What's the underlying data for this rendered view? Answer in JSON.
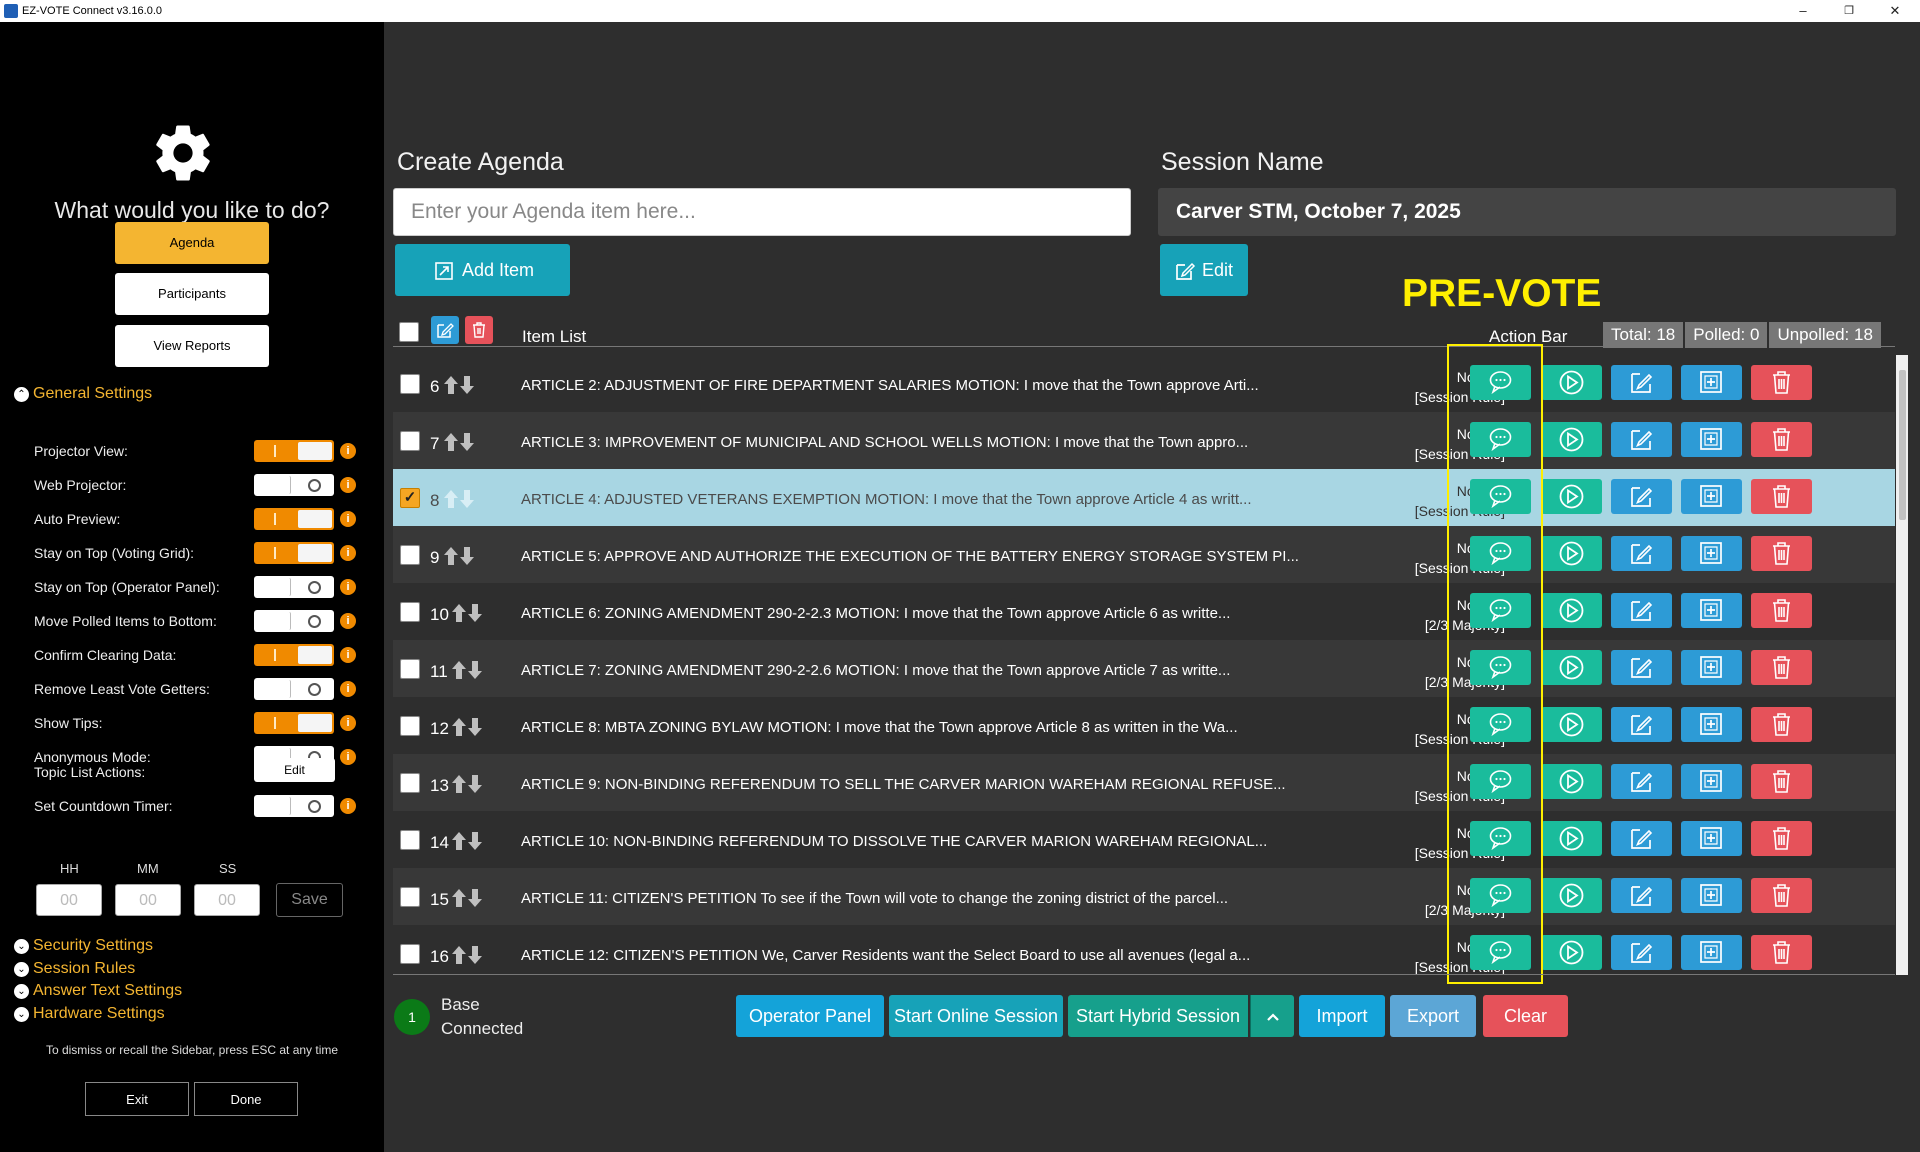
{
  "window": {
    "title": "EZ-VOTE Connect v3.16.0.0",
    "minimize": "–",
    "maximize": "❐",
    "close": "✕"
  },
  "sidebar": {
    "question": "What would you like to do?",
    "nav": [
      "Agenda",
      "Participants",
      "View Reports"
    ],
    "general_settings": "General Settings",
    "settings": [
      {
        "label": "Projector View:",
        "on": true
      },
      {
        "label": "Web Projector:",
        "on": false
      },
      {
        "label": "Auto Preview:",
        "on": true
      },
      {
        "label": "Stay on Top (Voting Grid):",
        "on": true
      },
      {
        "label": "Stay on Top (Operator Panel):",
        "on": false
      },
      {
        "label": "Move Polled Items to Bottom:",
        "on": false
      },
      {
        "label": "Confirm Clearing Data:",
        "on": true
      },
      {
        "label": "Remove Least Vote Getters:",
        "on": false
      },
      {
        "label": "Show Tips:",
        "on": true
      },
      {
        "label": "Anonymous Mode:",
        "on": false
      }
    ],
    "topic_list_actions": {
      "label": "Topic List Actions:",
      "button": "Edit"
    },
    "countdown": {
      "label": "Set Countdown Timer:",
      "on": false
    },
    "timer": {
      "hh_label": "HH",
      "mm_label": "MM",
      "ss_label": "SS",
      "hh": "00",
      "mm": "00",
      "ss": "00",
      "save": "Save"
    },
    "other_sections": [
      "Security Settings",
      "Session Rules",
      "Answer Text Settings",
      "Hardware Settings"
    ],
    "hint": "To dismiss or recall the Sidebar, press ESC at any time",
    "exit": "Exit",
    "done": "Done"
  },
  "main": {
    "create_agenda": "Create Agenda",
    "agenda_placeholder": "Enter your Agenda item here...",
    "add_item": "Add Item",
    "session_name_label": "Session Name",
    "session_name": "Carver STM, October 7, 2025",
    "edit": "Edit",
    "prevote": "PRE-VOTE",
    "item_list": "Item List",
    "action_bar": "Action Bar",
    "counts": {
      "total": "Total:  18",
      "polled": "Polled:  0",
      "unpolled": "Unpolled:  18"
    },
    "items": [
      {
        "num": "6",
        "text": "ARTICLE 2: ADJUSTMENT OF FIRE DEPARTMENT SALARIES MOTION: I move that the Town approve Arti...",
        "grid": "No Grid",
        "rule": "[Session Rule]",
        "checked": false
      },
      {
        "num": "7",
        "text": "ARTICLE 3: IMPROVEMENT OF MUNICIPAL AND SCHOOL WELLS MOTION: I move that the Town appro...",
        "grid": "No Grid",
        "rule": "[Session Rule]",
        "checked": false
      },
      {
        "num": "8",
        "text": "ARTICLE 4: ADJUSTED VETERANS EXEMPTION MOTION: I move that the Town approve Article 4 as writt...",
        "grid": "No Grid",
        "rule": "[Session Rule]",
        "checked": true
      },
      {
        "num": "9",
        "text": "ARTICLE 5: APPROVE AND AUTHORIZE THE EXECUTION OF THE BATTERY ENERGY STORAGE SYSTEM PI...",
        "grid": "No Grid",
        "rule": "[Session Rule]",
        "checked": false
      },
      {
        "num": "10",
        "text": "ARTICLE 6: ZONING AMENDMENT 290-2-2.3 MOTION: I move that the Town approve Article 6 as writte...",
        "grid": "No Grid",
        "rule": "[2/3 Majority]",
        "checked": false
      },
      {
        "num": "11",
        "text": "ARTICLE 7: ZONING AMENDMENT 290-2-2.6 MOTION: I move that the Town approve Article 7 as writte...",
        "grid": "No Grid",
        "rule": "[2/3 Majority]",
        "checked": false
      },
      {
        "num": "12",
        "text": "ARTICLE 8: MBTA ZONING BYLAW MOTION: I move that the Town approve Article 8 as written in the Wa...",
        "grid": "No Grid",
        "rule": "[Session Rule]",
        "checked": false
      },
      {
        "num": "13",
        "text": "ARTICLE 9: NON-BINDING REFERENDUM TO SELL THE CARVER MARION WAREHAM REGIONAL REFUSE...",
        "grid": "No Grid",
        "rule": "[Session Rule]",
        "checked": false
      },
      {
        "num": "14",
        "text": "ARTICLE 10: NON-BINDING REFERENDUM TO DISSOLVE THE CARVER MARION WAREHAM REGIONAL...",
        "grid": "No Grid",
        "rule": "[Session Rule]",
        "checked": false
      },
      {
        "num": "15",
        "text": "ARTICLE 11: CITIZEN'S PETITION  To see if the Town will vote to change the zoning district of the parcel...",
        "grid": "No Grid",
        "rule": "[2/3 Majority]",
        "checked": false
      },
      {
        "num": "16",
        "text": "ARTICLE 12: CITIZEN'S PETITION  We, Carver Residents want the Select Board to use all avenues (legal a...",
        "grid": "No Grid",
        "rule": "[Session Rule]",
        "checked": false
      }
    ],
    "status": {
      "count": "1",
      "line1": "Base",
      "line2": "Connected"
    },
    "footer_buttons": [
      "Operator Panel",
      "Start Online Session",
      "Start Hybrid Session",
      "Import",
      "Export",
      "Clear"
    ]
  }
}
